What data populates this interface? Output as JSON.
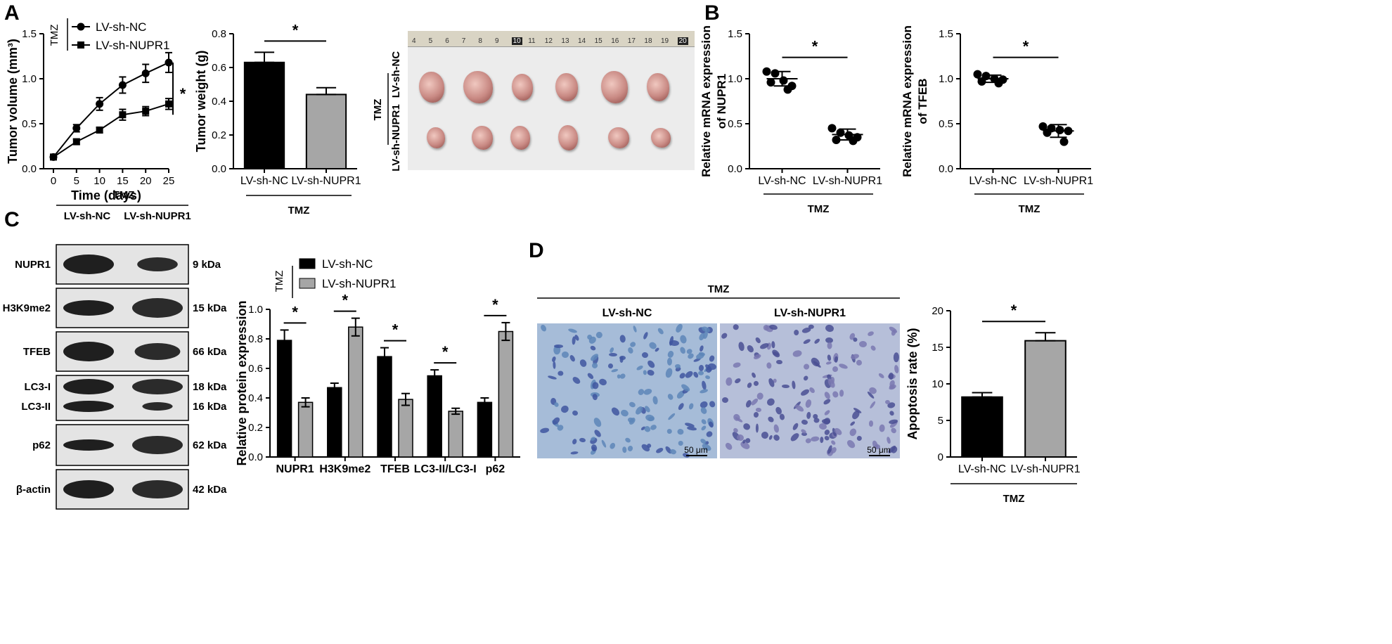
{
  "panel_labels": {
    "a": "A",
    "b": "B",
    "c": "C",
    "d": "D"
  },
  "chart_data": [
    {
      "id": "A1",
      "type": "line",
      "xlabel": "Time (days)",
      "ylabel": "Tumor volume (mm³)",
      "x": [
        0,
        5,
        10,
        15,
        20,
        25
      ],
      "xticks": [
        0,
        5,
        10,
        15,
        20,
        25
      ],
      "ylim": [
        0,
        1.5
      ],
      "yticks": [
        "0.0",
        "0.5",
        "1.0",
        "1.5"
      ],
      "legend_group": "TMZ",
      "series": [
        {
          "name": "LV-sh-NC",
          "marker": "circle",
          "values": [
            0.13,
            0.45,
            0.72,
            0.93,
            1.06,
            1.18
          ],
          "err": [
            0.02,
            0.04,
            0.07,
            0.09,
            0.1,
            0.11
          ]
        },
        {
          "name": "LV-sh-NUPR1",
          "marker": "square",
          "values": [
            0.13,
            0.3,
            0.43,
            0.6,
            0.64,
            0.72
          ],
          "err": [
            0.02,
            0.03,
            0.03,
            0.06,
            0.05,
            0.06
          ]
        }
      ],
      "sig": "*"
    },
    {
      "id": "A2",
      "type": "bar",
      "ylabel": "Tumor weight (g)",
      "categories": [
        "LV-sh-NC",
        "LV-sh-NUPR1"
      ],
      "values": [
        0.63,
        0.44
      ],
      "err": [
        0.06,
        0.04
      ],
      "colors": [
        "#000000",
        "#a6a6a6"
      ],
      "ylim": [
        0,
        0.8
      ],
      "yticks": [
        "0.0",
        "0.2",
        "0.4",
        "0.6",
        "0.8"
      ],
      "group": "TMZ",
      "sig": "*"
    },
    {
      "id": "B1",
      "type": "scatter",
      "ylabel_lines": [
        "Relative mRNA expression",
        "of NUPR1"
      ],
      "categories": [
        "LV-sh-NC",
        "LV-sh-NUPR1"
      ],
      "points": [
        [
          1.08,
          1.06,
          0.98,
          0.92,
          0.96,
          0.88
        ],
        [
          0.45,
          0.4,
          0.37,
          0.35,
          0.32,
          0.31
        ]
      ],
      "mean": [
        1.0,
        0.38
      ],
      "sd": [
        0.08,
        0.06
      ],
      "ylim": [
        0,
        1.5
      ],
      "yticks": [
        "0.0",
        "0.5",
        "1.0",
        "1.5"
      ],
      "group": "TMZ",
      "sig": "*"
    },
    {
      "id": "B2",
      "type": "scatter",
      "ylabel_lines": [
        "Relative mRNA expression",
        "of TFEB"
      ],
      "categories": [
        "LV-sh-NC",
        "LV-sh-NUPR1"
      ],
      "points": [
        [
          1.05,
          1.03,
          1.0,
          0.99,
          0.97,
          0.95
        ],
        [
          0.47,
          0.45,
          0.43,
          0.42,
          0.4,
          0.3
        ]
      ],
      "mean": [
        1.0,
        0.42
      ],
      "sd": [
        0.04,
        0.07
      ],
      "ylim": [
        0,
        1.5
      ],
      "yticks": [
        "0.0",
        "0.5",
        "1.0",
        "1.5"
      ],
      "group": "TMZ",
      "sig": "*"
    },
    {
      "id": "C1",
      "type": "bar",
      "ylabel": "Relative protein expression",
      "categories": [
        "NUPR1",
        "H3K9me2",
        "TFEB",
        "LC3-II/LC3-I",
        "p62"
      ],
      "series": [
        {
          "name": "LV-sh-NC",
          "color": "#000000",
          "values": [
            0.79,
            0.47,
            0.68,
            0.55,
            0.37
          ],
          "err": [
            0.07,
            0.03,
            0.06,
            0.04,
            0.03
          ]
        },
        {
          "name": "LV-sh-NUPR1",
          "color": "#a6a6a6",
          "values": [
            0.37,
            0.88,
            0.39,
            0.31,
            0.85
          ],
          "err": [
            0.03,
            0.06,
            0.04,
            0.02,
            0.06
          ]
        }
      ],
      "ylim": [
        0,
        1.0
      ],
      "yticks": [
        "0.0",
        "0.2",
        "0.4",
        "0.6",
        "0.8",
        "1.0"
      ],
      "legend_group": "TMZ",
      "sig": "*"
    },
    {
      "id": "D1",
      "type": "bar",
      "ylabel": "Apoptosis rate (%)",
      "categories": [
        "LV-sh-NC",
        "LV-sh-NUPR1"
      ],
      "values": [
        8.2,
        15.9
      ],
      "err": [
        0.6,
        1.1
      ],
      "colors": [
        "#000000",
        "#a6a6a6"
      ],
      "ylim": [
        0,
        20
      ],
      "yticks": [
        "0",
        "5",
        "10",
        "15",
        "20"
      ],
      "group": "TMZ",
      "sig": "*"
    }
  ],
  "tumor_photo": {
    "ruler_numbers": [
      "4",
      "5",
      "6",
      "7",
      "8",
      "9",
      "10",
      "11",
      "12",
      "13",
      "14",
      "15",
      "16",
      "17",
      "18",
      "19",
      "20"
    ],
    "group": "TMZ",
    "rows": [
      "LV-sh-NC",
      "LV-sh-NUPR1"
    ]
  },
  "western_blot": {
    "group": "TMZ",
    "columns": [
      "LV-sh-NC",
      "LV-sh-NUPR1"
    ],
    "bands": [
      {
        "name": "NUPR1",
        "kda": "9 kDa"
      },
      {
        "name": "H3K9me2",
        "kda": "15 kDa"
      },
      {
        "name": "TFEB",
        "kda": "66 kDa"
      },
      {
        "name": "LC3-I",
        "kda": "18 kDa"
      },
      {
        "name": "LC3-II",
        "kda": "16 kDa"
      },
      {
        "name": "p62",
        "kda": "62 kDa"
      },
      {
        "name": "β-actin",
        "kda": "42 kDa"
      }
    ]
  },
  "tunel": {
    "group": "TMZ",
    "columns": [
      "LV-sh-NC",
      "LV-sh-NUPR1"
    ],
    "scale": "50 μm"
  },
  "colors": {
    "black": "#000000",
    "gray": "#a6a6a6",
    "tissue": "#9fb5d2"
  }
}
